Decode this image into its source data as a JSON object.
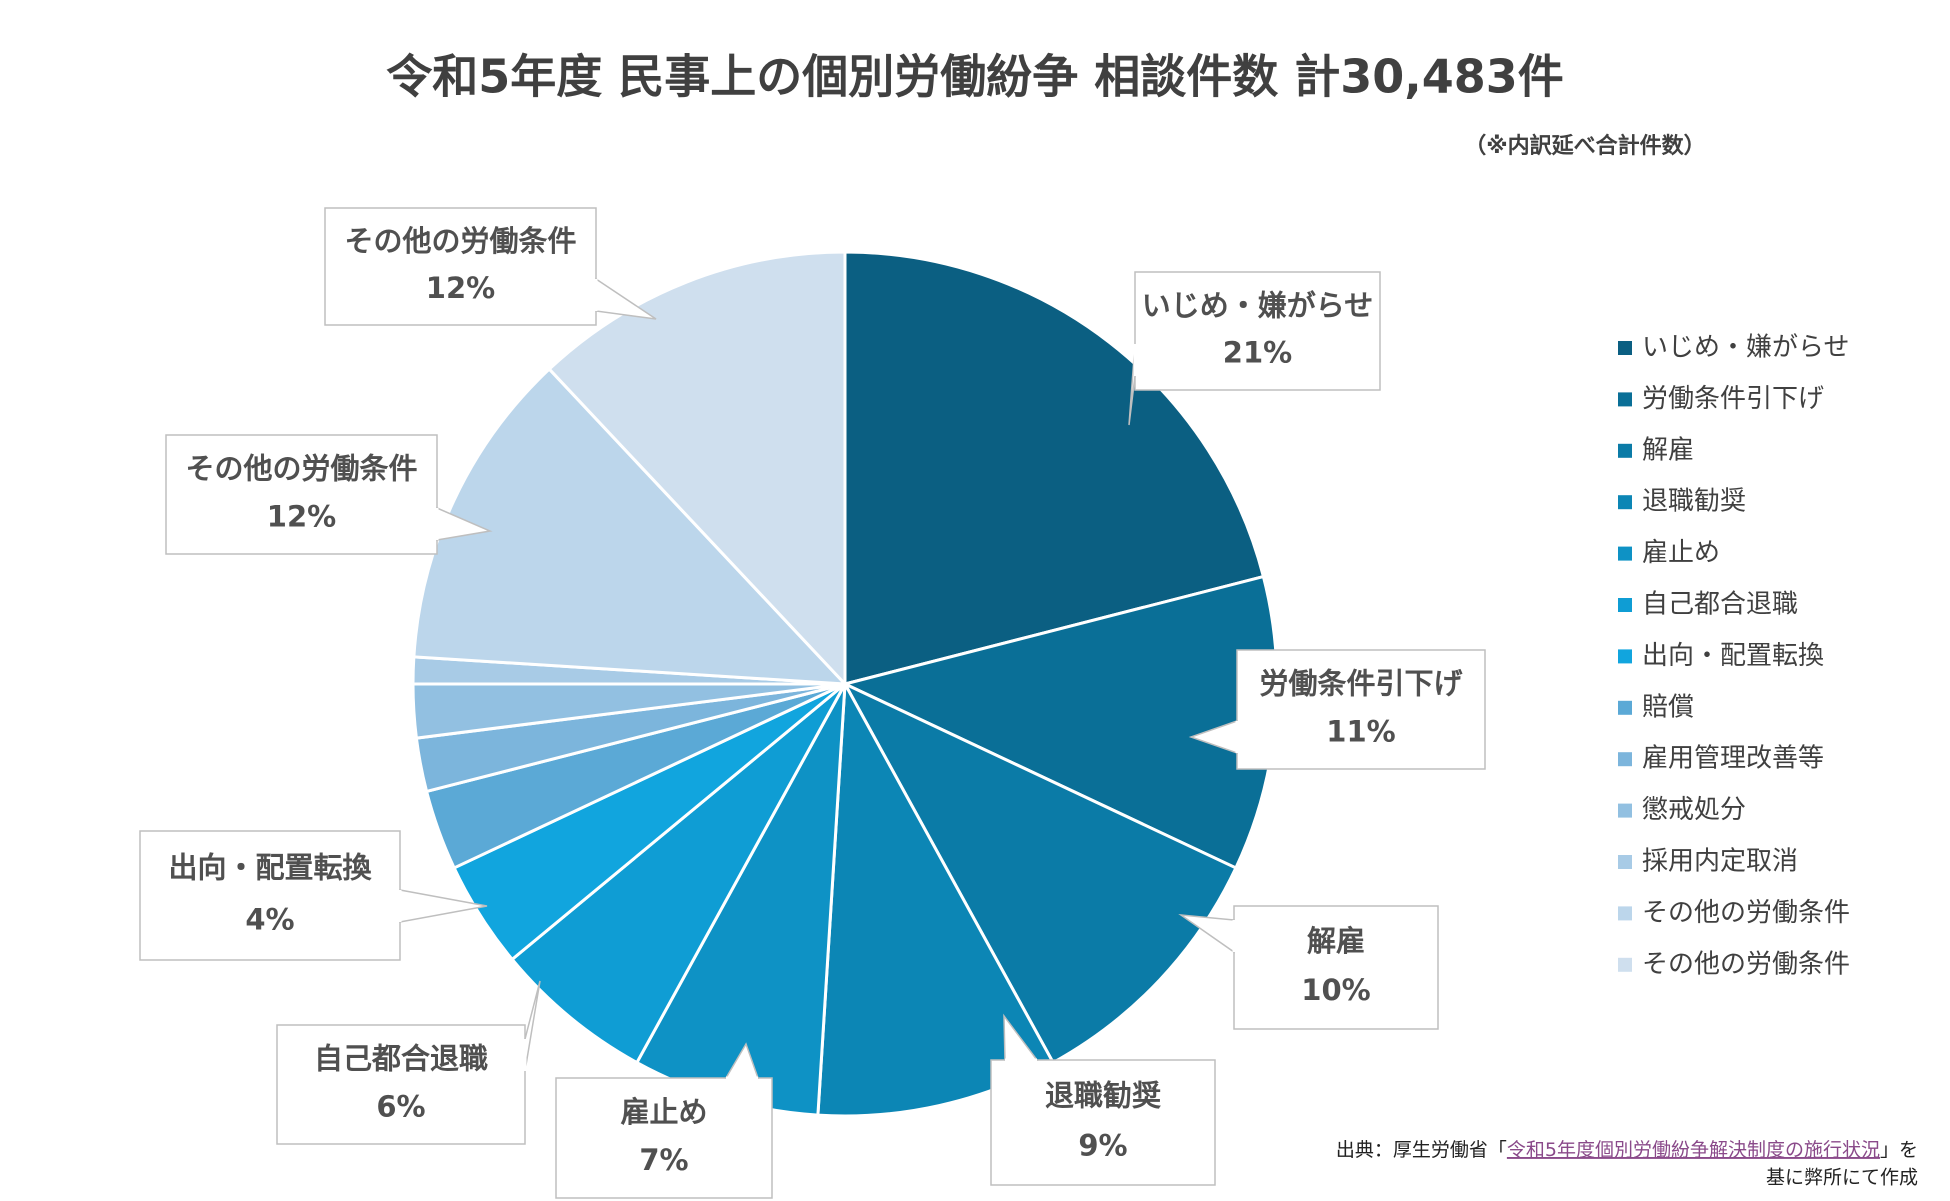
{
  "chart_data": {
    "type": "pie",
    "title": "令和5年度 民事上の個別労働紛争 相談件数 計30,483件",
    "subtitle": "（※内訳延べ合計件数）",
    "categories": [
      "いじめ・嫌がらせ",
      "労働条件引下げ",
      "解雇",
      "退職勧奨",
      "雇止め",
      "自己都合退職",
      "出向・配置転換",
      "賠償",
      "雇用管理改善等",
      "懲戒処分",
      "採用内定取消",
      "その他の労働条件",
      "その他の労働条件"
    ],
    "values": [
      21,
      11,
      10,
      9,
      7,
      6,
      4,
      3,
      2,
      2,
      1,
      12,
      12
    ],
    "value_labels": [
      "21%",
      "11%",
      "10%",
      "9%",
      "7%",
      "6%",
      "4%",
      null,
      null,
      null,
      null,
      "12%",
      "12%"
    ],
    "colors": [
      "#0b5f82",
      "#0a6f97",
      "#0b7ba7",
      "#0c86b5",
      "#0e92c5",
      "#0f9dd4",
      "#11a5de",
      "#5ba9d6",
      "#7cb5dc",
      "#92c0e1",
      "#a8cbe6",
      "#bcd6eb",
      "#cfdfee"
    ],
    "legend": "right",
    "source": {
      "prefix": "出典：厚生労働省「",
      "link": "令和5年度個別労働紛争解決制度の施行状況",
      "suffix": "」を",
      "line2": "基に弊所にて作成"
    }
  }
}
